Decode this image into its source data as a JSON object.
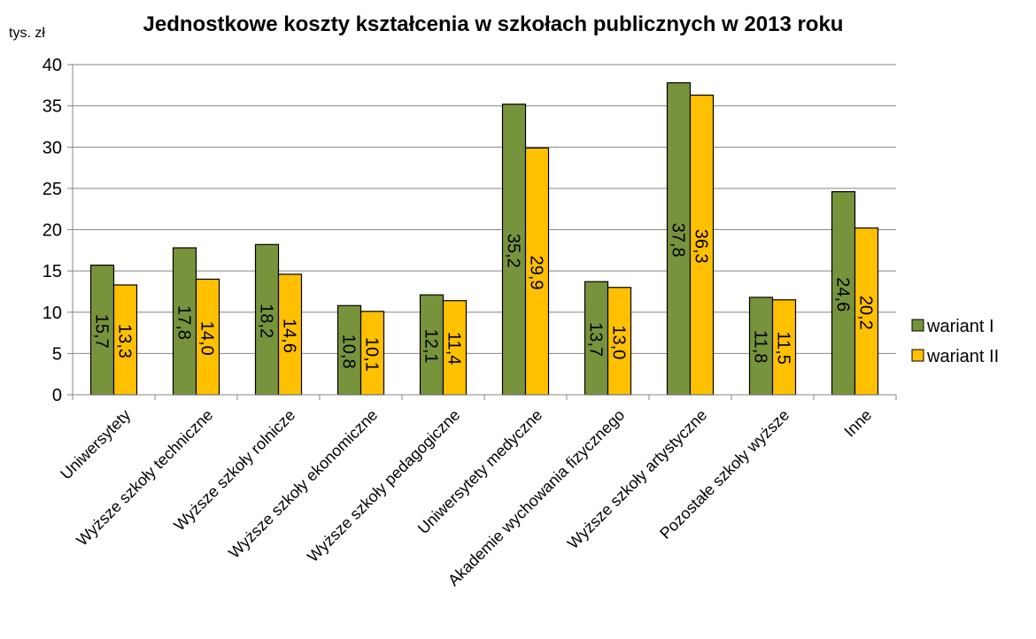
{
  "chart_data": {
    "type": "bar",
    "title": "Jednostkowe koszty kształcenia w szkołach publicznych w 2013 roku",
    "ylabel": "tys. zł",
    "xlabel": "",
    "ylim": [
      0,
      40
    ],
    "yticks": [
      0,
      5,
      10,
      15,
      20,
      25,
      30,
      35,
      40
    ],
    "grid": true,
    "legend_position": "right",
    "categories": [
      "Uniwersytety",
      "Wyższe szkoły techniczne",
      "Wyższe szkoły rolnicze",
      "Wyższe szkoły ekonomiczne",
      "Wyższe szkoły pedagogiczne",
      "Uniwersytety medyczne",
      "Akademie wychowania fizycznego",
      "Wyższe szkoły artystyczne",
      "Pozostałe szkoły wyższe",
      "Inne"
    ],
    "series": [
      {
        "name": "wariant I",
        "color": "#77933C",
        "values": [
          15.7,
          17.8,
          18.2,
          10.8,
          12.1,
          35.2,
          13.7,
          37.8,
          11.8,
          24.6
        ],
        "labels": [
          "15,7",
          "17,8",
          "18,2",
          "10,8",
          "12,1",
          "35,2",
          "13,7",
          "37,8",
          "11,8",
          "24,6"
        ]
      },
      {
        "name": "wariant II",
        "color": "#FFC000",
        "values": [
          13.3,
          14.0,
          14.6,
          10.1,
          11.4,
          29.9,
          13.0,
          36.3,
          11.5,
          20.2
        ],
        "labels": [
          "13,3",
          "14,0",
          "14,6",
          "10,1",
          "11,4",
          "29,9",
          "13,0",
          "36,3",
          "11,5",
          "20,2"
        ]
      }
    ]
  }
}
